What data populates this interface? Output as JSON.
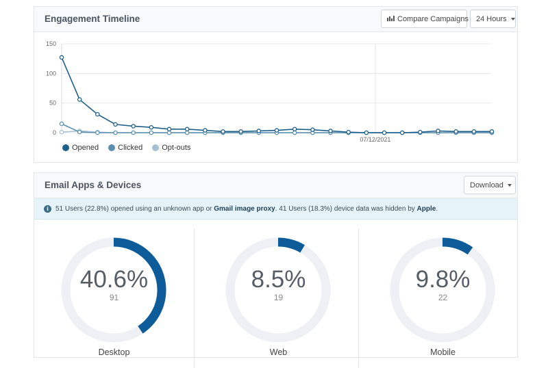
{
  "engagement": {
    "title": "Engagement Timeline",
    "compare_label": "Compare Campaigns",
    "range_label": "24 Hours"
  },
  "apps": {
    "title": "Email Apps & Devices",
    "download_label": "Download",
    "info": {
      "part1": "51 Users (22.8%) opened using an unknown app or ",
      "bold1": "Gmail image proxy",
      "part2": ". 41 Users (18.3%) device data was hidden by ",
      "bold2": "Apple",
      "part3": "."
    },
    "devices": [
      {
        "name": "Desktop",
        "percent_label": "40.6%",
        "percent": 40.6,
        "count": "91"
      },
      {
        "name": "Web",
        "percent_label": "8.5%",
        "percent": 8.5,
        "count": "19"
      },
      {
        "name": "Mobile",
        "percent_label": "9.8%",
        "percent": 9.8,
        "count": "22"
      }
    ],
    "accent": "#0d5c99",
    "track": "#eef0f5"
  },
  "chart_data": {
    "type": "line",
    "x": [
      1,
      2,
      3,
      4,
      5,
      6,
      7,
      8,
      9,
      10,
      11,
      12,
      13,
      14,
      15,
      16,
      17,
      18,
      19,
      20,
      21,
      22,
      23,
      24,
      25
    ],
    "x_tick_labels": [
      {
        "at": 18.5,
        "label": "07/12/2021"
      }
    ],
    "y_ticks": [
      0,
      50,
      100,
      150
    ],
    "ylim": [
      0,
      150
    ],
    "grid": true,
    "legend_placement": "bottom-left",
    "series": [
      {
        "name": "Opened",
        "color": "#1f5f8b",
        "values": [
          127,
          56,
          31,
          14,
          11,
          9,
          6,
          6,
          4,
          2,
          2,
          3,
          4,
          6,
          5,
          3,
          1,
          0,
          0,
          0,
          1,
          3,
          2,
          2,
          2
        ]
      },
      {
        "name": "Clicked",
        "color": "#5b8fb0",
        "values": [
          15,
          1,
          0,
          0,
          0,
          0,
          0,
          0,
          0,
          0,
          0,
          0,
          0,
          0,
          0,
          0,
          0,
          0,
          0,
          0,
          0,
          0,
          0,
          0,
          0
        ]
      },
      {
        "name": "Opt-outs",
        "color": "#a6c1d4",
        "values": [
          1,
          3,
          1,
          0,
          0,
          0,
          0,
          0,
          0,
          0,
          0,
          0,
          0,
          0,
          0,
          0,
          0,
          0,
          0,
          0,
          0,
          0,
          0,
          0,
          0
        ]
      }
    ]
  }
}
